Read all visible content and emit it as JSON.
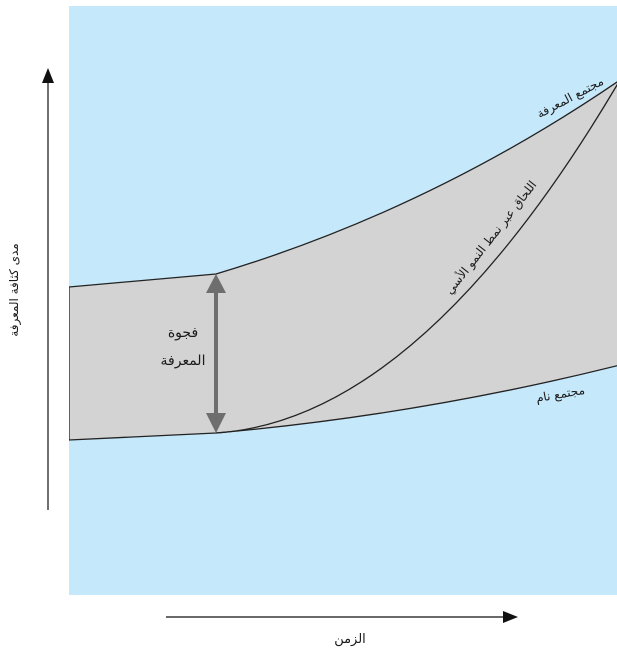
{
  "colors": {
    "background_panel": "#c5e8fa",
    "band_fill": "#d3d3d3",
    "curve_stroke": "#222222",
    "gap_arrow": "#6e6e6e",
    "axis": "#111111"
  },
  "axes": {
    "y_label": "مدى كثافة المعرفة",
    "x_label": "الزمن"
  },
  "curves": {
    "knowledge_society": "مجتمع المعرفة",
    "catch_up_exponential": "اللحاق عبر نمط النمو الأسي",
    "developing_society": "مجتمع نام"
  },
  "gap": {
    "line1": "فجوة",
    "line2": "المعرفة"
  }
}
